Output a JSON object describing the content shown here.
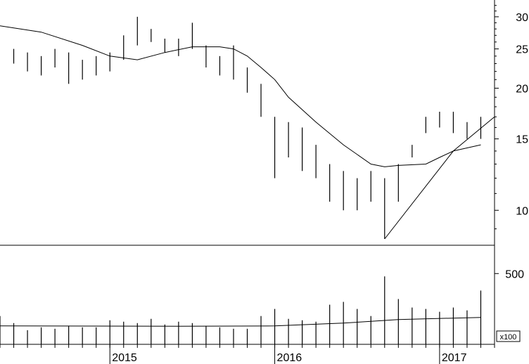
{
  "chart_data": [
    {
      "type": "ohlc",
      "scale": "log",
      "ylim": [
        8.2,
        33
      ],
      "yticks": [
        10,
        15,
        20,
        25,
        30
      ],
      "x_start": "2014-05",
      "x_end": "2017-05",
      "series": [
        {
          "type": "ohlc",
          "bars": [
            {
              "date": "2014-06",
              "low": 23.0,
              "high": 25.0
            },
            {
              "date": "2014-07",
              "low": 22.0,
              "high": 24.5
            },
            {
              "date": "2014-08",
              "low": 21.5,
              "high": 24.0
            },
            {
              "date": "2014-09",
              "low": 22.5,
              "high": 25.0
            },
            {
              "date": "2014-10",
              "low": 20.5,
              "high": 24.5
            },
            {
              "date": "2014-11",
              "low": 21.0,
              "high": 23.5
            },
            {
              "date": "2014-12",
              "low": 21.5,
              "high": 24.0
            },
            {
              "date": "2015-01",
              "low": 22.0,
              "high": 24.5
            },
            {
              "date": "2015-02",
              "low": 23.5,
              "high": 27.0
            },
            {
              "date": "2015-03",
              "low": 25.5,
              "high": 30.0
            },
            {
              "date": "2015-04",
              "low": 26.0,
              "high": 28.0
            },
            {
              "date": "2015-05",
              "low": 24.5,
              "high": 26.5
            },
            {
              "date": "2015-06",
              "low": 24.0,
              "high": 26.5
            },
            {
              "date": "2015-07",
              "low": 25.0,
              "high": 29.0
            },
            {
              "date": "2015-08",
              "low": 22.5,
              "high": 25.5
            },
            {
              "date": "2015-09",
              "low": 21.5,
              "high": 24.0
            },
            {
              "date": "2015-10",
              "low": 21.0,
              "high": 25.5
            },
            {
              "date": "2015-11",
              "low": 19.5,
              "high": 22.5
            },
            {
              "date": "2015-12",
              "low": 17.0,
              "high": 20.5
            },
            {
              "date": "2016-01",
              "low": 12.0,
              "high": 17.0
            },
            {
              "date": "2016-02",
              "low": 13.5,
              "high": 16.5
            },
            {
              "date": "2016-03",
              "low": 12.5,
              "high": 16.0
            },
            {
              "date": "2016-04",
              "low": 12.0,
              "high": 14.5
            },
            {
              "date": "2016-05",
              "low": 10.5,
              "high": 13.0
            },
            {
              "date": "2016-06",
              "low": 10.0,
              "high": 12.5
            },
            {
              "date": "2016-07",
              "low": 10.0,
              "high": 12.0
            },
            {
              "date": "2016-08",
              "low": 10.5,
              "high": 12.5
            },
            {
              "date": "2016-09",
              "low": 8.5,
              "high": 12.0
            },
            {
              "date": "2016-10",
              "low": 10.5,
              "high": 13.0
            },
            {
              "date": "2016-11",
              "low": 13.5,
              "high": 14.5
            },
            {
              "date": "2016-12",
              "low": 15.5,
              "high": 17.0
            },
            {
              "date": "2017-01",
              "low": 16.0,
              "high": 17.5
            },
            {
              "date": "2017-02",
              "low": 15.5,
              "high": 17.5
            },
            {
              "date": "2017-03",
              "low": 15.0,
              "high": 16.5
            },
            {
              "date": "2017-04",
              "low": 15.0,
              "high": 17.0
            }
          ]
        },
        {
          "type": "line",
          "points": [
            [
              "2014-05",
              28.5
            ],
            [
              "2014-08",
              27.5
            ],
            [
              "2014-11",
              25.5
            ],
            [
              "2015-01",
              24.0
            ],
            [
              "2015-03",
              23.5
            ],
            [
              "2015-05",
              24.5
            ],
            [
              "2015-07",
              25.3
            ],
            [
              "2015-09",
              25.3
            ],
            [
              "2015-10",
              25.0
            ],
            [
              "2015-11",
              24.0
            ],
            [
              "2015-12",
              22.5
            ],
            [
              "2016-01",
              21.0
            ],
            [
              "2016-02",
              19.0
            ],
            [
              "2016-04",
              16.5
            ],
            [
              "2016-06",
              14.5
            ],
            [
              "2016-08",
              13.0
            ],
            [
              "2016-09",
              12.8
            ],
            [
              "2016-10",
              12.9
            ],
            [
              "2016-12",
              13.0
            ],
            [
              "2017-01",
              13.5
            ],
            [
              "2017-02",
              14.0
            ],
            [
              "2017-04",
              14.5
            ]
          ]
        },
        {
          "type": "line",
          "points": [
            [
              "2016-09",
              8.5
            ],
            [
              "2017-02",
              14.0
            ],
            [
              "2017-05",
              17.0
            ]
          ]
        }
      ]
    },
    {
      "type": "bar",
      "unit_label": "x100",
      "yticks": [
        500
      ],
      "ylim": [
        0,
        700
      ],
      "x_labels": [
        "2015",
        "2016",
        "2017"
      ],
      "x_label_dates": [
        "2015-01",
        "2016-01",
        "2017-01"
      ],
      "series": [
        {
          "type": "bar",
          "points": [
            [
              "2014-05",
              200
            ],
            [
              "2014-06",
              150
            ],
            [
              "2014-07",
              100
            ],
            [
              "2014-08",
              120
            ],
            [
              "2014-09",
              110
            ],
            [
              "2014-10",
              130
            ],
            [
              "2014-11",
              120
            ],
            [
              "2014-12",
              120
            ],
            [
              "2015-01",
              170
            ],
            [
              "2015-02",
              160
            ],
            [
              "2015-03",
              150
            ],
            [
              "2015-04",
              180
            ],
            [
              "2015-05",
              140
            ],
            [
              "2015-06",
              160
            ],
            [
              "2015-07",
              150
            ],
            [
              "2015-08",
              130
            ],
            [
              "2015-09",
              120
            ],
            [
              "2015-10",
              110
            ],
            [
              "2015-11",
              110
            ],
            [
              "2015-12",
              200
            ],
            [
              "2016-01",
              250
            ],
            [
              "2016-02",
              180
            ],
            [
              "2016-03",
              170
            ],
            [
              "2016-04",
              160
            ],
            [
              "2016-05",
              280
            ],
            [
              "2016-06",
              300
            ],
            [
              "2016-07",
              250
            ],
            [
              "2016-08",
              200
            ],
            [
              "2016-09",
              480
            ],
            [
              "2016-10",
              320
            ],
            [
              "2016-11",
              260
            ],
            [
              "2016-12",
              250
            ],
            [
              "2017-01",
              230
            ],
            [
              "2017-02",
              260
            ],
            [
              "2017-03",
              240
            ],
            [
              "2017-04",
              380
            ]
          ]
        },
        {
          "type": "line",
          "points": [
            [
              "2014-05",
              130
            ],
            [
              "2015-06",
              128
            ],
            [
              "2016-01",
              130
            ],
            [
              "2016-06",
              150
            ],
            [
              "2016-10",
              175
            ],
            [
              "2017-02",
              185
            ],
            [
              "2017-04",
              190
            ]
          ]
        }
      ]
    }
  ]
}
